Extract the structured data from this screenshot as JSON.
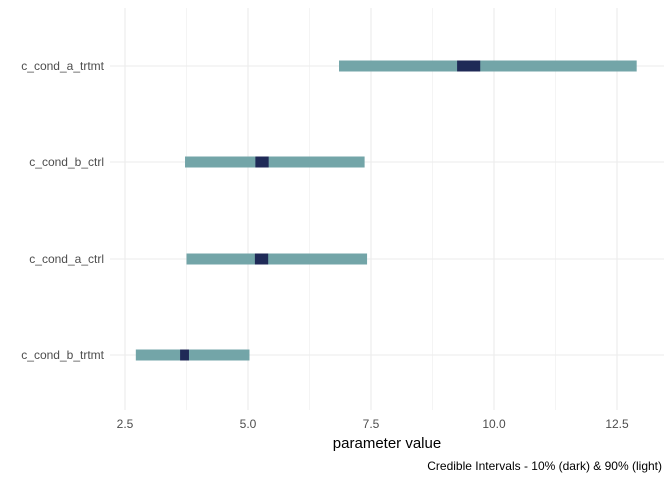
{
  "chart_data": {
    "type": "interval",
    "title": "",
    "xlabel": "parameter value",
    "ylabel": "",
    "caption": "Credible Intervals - 10% (dark) & 90% (light)",
    "xlim": [
      2.25,
      13.2
    ],
    "x_ticks": [
      2.5,
      5.0,
      7.5,
      10.0,
      12.5
    ],
    "x_tick_labels": [
      "2.5",
      "5.0",
      "7.5",
      "10.0",
      "12.5"
    ],
    "grid": true,
    "categories": [
      "c_cond_a_trtmt",
      "c_cond_b_ctrl",
      "c_cond_a_ctrl",
      "c_cond_b_trtmt"
    ],
    "intervals": [
      {
        "parameter": "c_cond_a_trtmt",
        "outer": [
          6.85,
          12.9
        ],
        "inner": [
          9.25,
          9.72
        ]
      },
      {
        "parameter": "c_cond_b_ctrl",
        "outer": [
          3.72,
          7.37
        ],
        "inner": [
          5.15,
          5.42
        ]
      },
      {
        "parameter": "c_cond_a_ctrl",
        "outer": [
          3.75,
          7.42
        ],
        "inner": [
          5.14,
          5.41
        ]
      },
      {
        "parameter": "c_cond_b_trtmt",
        "outer": [
          2.72,
          5.03
        ],
        "inner": [
          3.62,
          3.8
        ]
      }
    ],
    "colors": {
      "outer": "#73a5a8",
      "inner": "#1f2a57",
      "grid": "#ebebeb"
    }
  }
}
